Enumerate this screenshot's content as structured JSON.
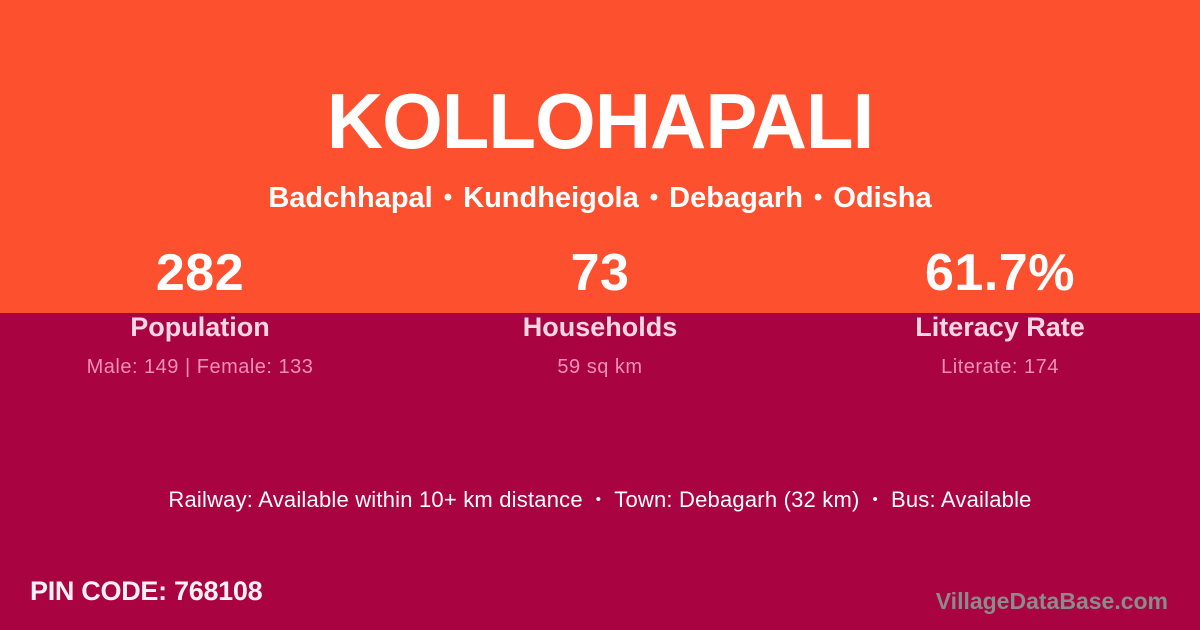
{
  "card": {
    "title": "KOLLOHAPALI",
    "places": [
      "Badchhapal",
      "Kundheigola",
      "Debagarh",
      "Odisha"
    ],
    "separator": "•"
  },
  "stats": [
    {
      "value": "282",
      "label": "Population",
      "detail": "Male: 149 | Female: 133"
    },
    {
      "value": "73",
      "label": "Households",
      "detail": "59 sq km"
    },
    {
      "value": "61.7%",
      "label": "Literacy Rate",
      "detail": "Literate: 174"
    }
  ],
  "amenities": {
    "railway": "Railway: Available within 10+ km distance",
    "town": "Town: Debagarh (32 km)",
    "bus": "Bus: Available",
    "separator": "•"
  },
  "footer": {
    "pin_code": "PIN CODE: 768108",
    "watermark": "VillageDataBase.com"
  },
  "theme": {
    "orange": "#FC502E",
    "crimson": "#A90341",
    "label_pink": "#F7D7E3",
    "detail_pink": "#EF90B5",
    "watermark_gray": "#8B8B8B",
    "text_white": "#FFFFFF"
  }
}
